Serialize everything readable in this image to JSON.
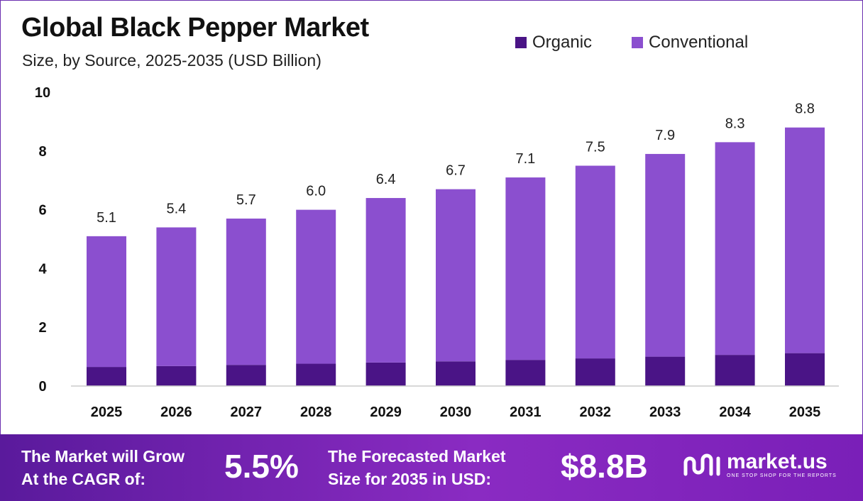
{
  "chart_data": {
    "type": "bar",
    "stacked": true,
    "title": "Global Black Pepper Market",
    "subtitle": "Size, by Source, 2025-2035 (USD Billion)",
    "categories": [
      "2025",
      "2026",
      "2027",
      "2028",
      "2029",
      "2030",
      "2031",
      "2032",
      "2033",
      "2034",
      "2035"
    ],
    "series": [
      {
        "name": "Organic",
        "color": "#4a1486",
        "values": [
          0.65,
          0.68,
          0.72,
          0.76,
          0.8,
          0.84,
          0.89,
          0.94,
          1.0,
          1.06,
          1.12
        ]
      },
      {
        "name": "Conventional",
        "color": "#8b4fcf",
        "values": [
          4.45,
          4.72,
          4.98,
          5.24,
          5.6,
          5.86,
          6.21,
          6.56,
          6.9,
          7.24,
          7.68
        ]
      }
    ],
    "totals_labels": [
      "5.1",
      "5.4",
      "5.7",
      "6.0",
      "6.4",
      "6.7",
      "7.1",
      "7.5",
      "7.9",
      "8.3",
      "8.8"
    ],
    "totals": [
      5.1,
      5.4,
      5.7,
      6.0,
      6.4,
      6.7,
      7.1,
      7.5,
      7.9,
      8.3,
      8.8
    ],
    "yticks": [
      "0",
      "2",
      "4",
      "6",
      "8",
      "10"
    ],
    "ylim": [
      0,
      10
    ],
    "xlabel": "",
    "ylabel": "",
    "grid": false,
    "legend_position": "top-right"
  },
  "footer": {
    "cagr_text_line1": "The Market will Grow",
    "cagr_text_line2": "At the CAGR of:",
    "cagr_value": "5.5%",
    "forecast_text_line1": "The Forecasted Market",
    "forecast_text_line2": "Size for 2035 in USD:",
    "forecast_value": "$8.8B",
    "brand_name": "market.us",
    "brand_tagline": "ONE STOP SHOP FOR THE REPORTS"
  },
  "icons": {
    "brand_logo": "market-us-logo-icon"
  }
}
